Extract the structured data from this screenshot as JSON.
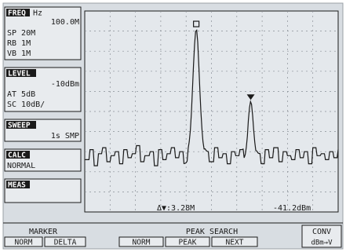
{
  "sidebar": {
    "freq": {
      "title": "FREQ",
      "unit": "Hz",
      "center": "100.0M",
      "sp": "SP 20M",
      "rb": "RB 1M",
      "vb": "VB 1M"
    },
    "level": {
      "title": "LEVEL",
      "ref": "-10dBm",
      "at": "AT 5dB",
      "sc": "SC 10dB/"
    },
    "sweep": {
      "title": "SWEEP",
      "value": "1s SMP"
    },
    "calc": {
      "title": "CALC",
      "value": "NORMAL"
    },
    "meas": {
      "title": "MEAS"
    }
  },
  "marker_readout": {
    "freq": "Δ▼:3.28M",
    "level": "-41.2dBm"
  },
  "softkeys": {
    "marker": {
      "title": "MARKER",
      "keys": [
        "NORM",
        "DELTA"
      ]
    },
    "peak_search": {
      "title": "PEAK SEARCH",
      "keys": [
        "NORM",
        "PEAK",
        "NEXT"
      ]
    },
    "conv": {
      "title": "CONV",
      "key": "dBm→V"
    }
  },
  "colors": {
    "background": "#ffffff",
    "screen": "#d8dde2",
    "ink": "#1a1a1a",
    "grid": "#8a8f96",
    "frame": "#9aa0a6"
  },
  "trace": {
    "noise_floor": [
      0.74,
      0.69,
      0.77,
      0.71,
      0.68,
      0.75,
      0.72,
      0.7,
      0.76,
      0.69,
      0.73,
      0.71,
      0.67,
      0.75,
      0.72,
      0.7,
      0.77,
      0.69,
      0.74,
      0.71,
      0.68,
      0.73,
      0.7,
      0.76,
      0.71,
      0.69,
      0.74,
      0.72,
      0.7,
      0.75,
      0.68,
      0.73,
      0.71,
      0.76,
      0.7,
      0.72,
      0.69,
      0.74,
      0.71,
      0.73
    ],
    "peak1_center": 0.44,
    "peak1_level": 0.09,
    "peak2_center": 0.655,
    "peak2_level": 0.45,
    "tail_noise": [
      0.71,
      0.76,
      0.69,
      0.73,
      0.68,
      0.75,
      0.7,
      0.72,
      0.74,
      0.69,
      0.73,
      0.7,
      0.76,
      0.68,
      0.72,
      0.71,
      0.74,
      0.7,
      0.73,
      0.69
    ]
  }
}
